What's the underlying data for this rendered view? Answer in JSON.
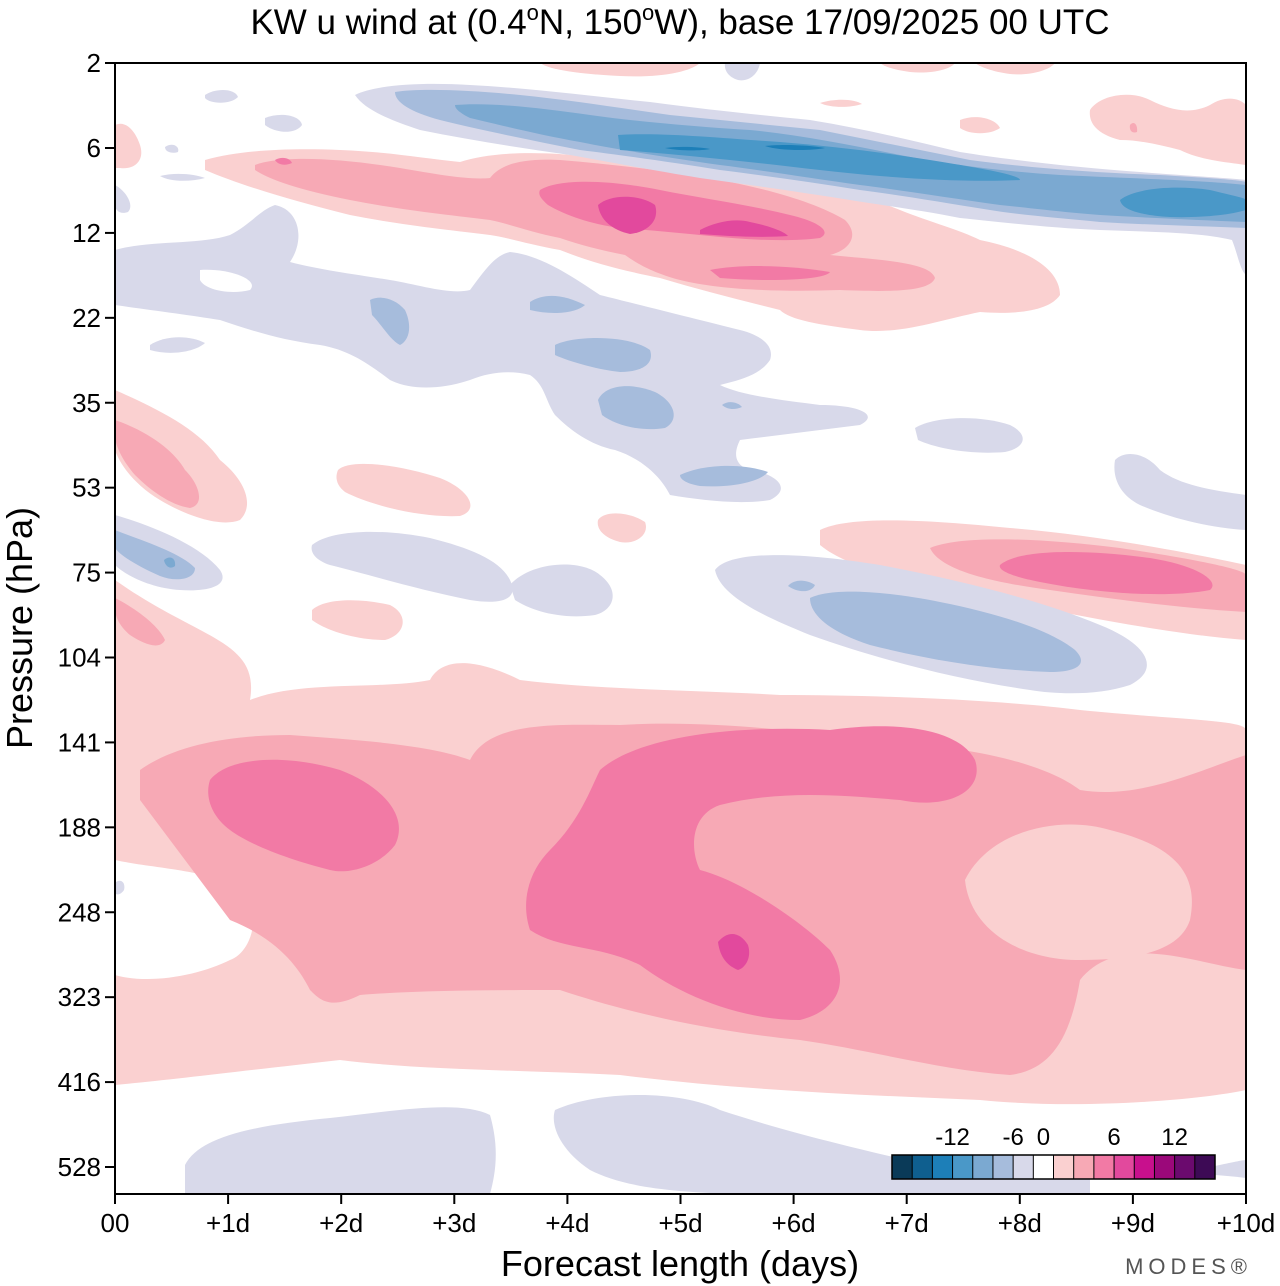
{
  "chart_data": {
    "type": "heatmap",
    "subtype": "filled-contour",
    "title": "KW u wind at (0.4°N, 150°W),  base 17/09/2025  00 UTC",
    "title_parts": {
      "prefix": "KW u wind at (0.4",
      "deg": "o",
      "mid": "N, 150",
      "suffix": "W),  base 17/09/2025  00 UTC"
    },
    "xlabel": "Forecast length (days)",
    "ylabel": "Pressure (hPa)",
    "x_ticks": [
      "00",
      "+1d",
      "+2d",
      "+3d",
      "+4d",
      "+5d",
      "+6d",
      "+7d",
      "+8d",
      "+9d",
      "+10d"
    ],
    "x_range": [
      0,
      10
    ],
    "y_ticks": [
      2,
      6,
      12,
      22,
      35,
      53,
      75,
      104,
      141,
      188,
      248,
      323,
      416,
      528
    ],
    "y_scale": "log",
    "colorbar": {
      "tick_labels": [
        "-12",
        "-6",
        "0",
        "6",
        "12"
      ],
      "tick_values": [
        -12,
        -6,
        0,
        6,
        12
      ],
      "levels": [
        -16,
        -14,
        -12,
        -10,
        -8,
        -6,
        -4,
        -2,
        2,
        4,
        6,
        8,
        10,
        12,
        14,
        16
      ],
      "colors": [
        "#0a3a58",
        "#0f5f8f",
        "#1d7fb8",
        "#4a98c8",
        "#7ba9d1",
        "#a6bcdc",
        "#d8d9ea",
        "#ffffff",
        "#fad0d0",
        "#f7a9b5",
        "#f27aa5",
        "#e2499d",
        "#c8108d",
        "#9b087a",
        "#6b0a6e",
        "#3d0a55"
      ]
    },
    "regions": [
      {
        "name": "upper-easterly-jet",
        "level_range": [
          -10,
          -4
        ],
        "days": [
          2.5,
          10
        ],
        "pressure_hPa": [
          4,
          12
        ],
        "min_value": -11
      },
      {
        "name": "upper-westerly-band",
        "level_range": [
          2,
          10
        ],
        "days": [
          0.5,
          6.5
        ],
        "pressure_hPa": [
          6,
          20
        ],
        "max_value": 9
      },
      {
        "name": "easterly-mid-strat",
        "level_range": [
          -6,
          -2
        ],
        "days": [
          1,
          6.5
        ],
        "pressure_hPa": [
          10,
          55
        ],
        "min_value": -6
      },
      {
        "name": "westerly-75hPa",
        "level_range": [
          2,
          8
        ],
        "days": [
          6.3,
          10
        ],
        "pressure_hPa": [
          60,
          95
        ],
        "max_value": 8
      },
      {
        "name": "easterly-95hPa",
        "level_range": [
          -6,
          -2
        ],
        "days": [
          5.3,
          9.2
        ],
        "pressure_hPa": [
          75,
          120
        ],
        "min_value": -5
      },
      {
        "name": "tropospheric-westerlies",
        "level_range": [
          2,
          10
        ],
        "days": [
          0,
          10
        ],
        "pressure_hPa": [
          110,
          450
        ],
        "max_value": 10
      },
      {
        "name": "lower-easterly",
        "level_range": [
          -4,
          -2
        ],
        "days": [
          0.6,
          10
        ],
        "pressure_hPa": [
          440,
          600
        ],
        "min_value": -3
      }
    ]
  },
  "footer": {
    "credit": "MODES®"
  }
}
